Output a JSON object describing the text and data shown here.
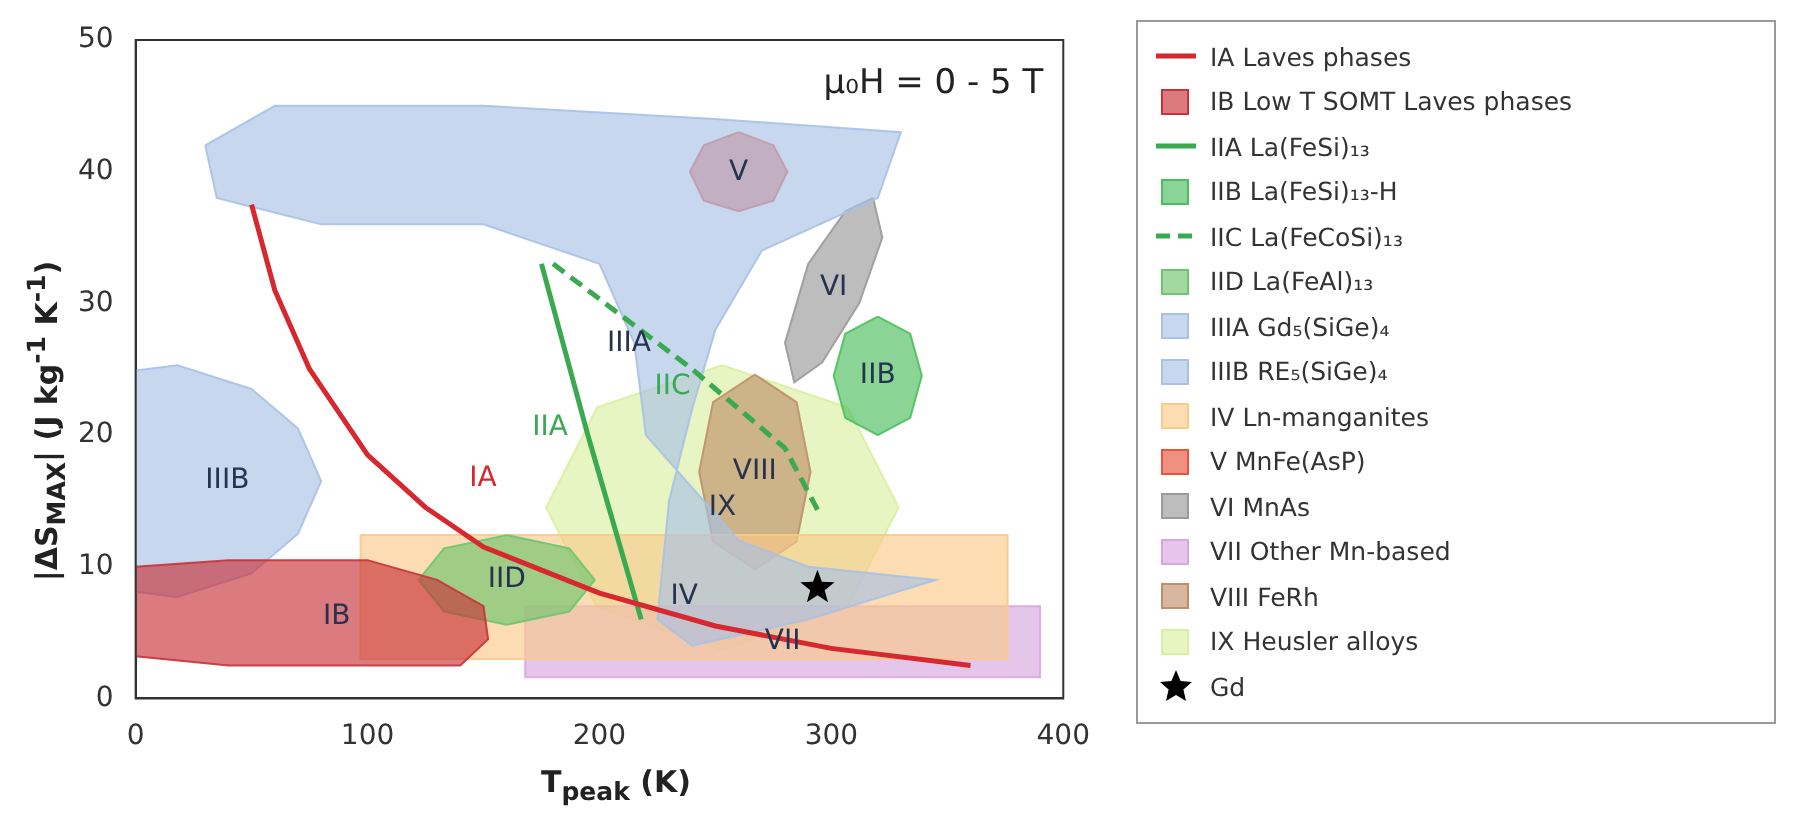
{
  "chart_data": {
    "type": "area",
    "xlabel": "T$_{peak}$ (K)",
    "ylabel": "|ΔS$_{MAX}$| (J kg$^{-1}$ K$^{-1}$)",
    "xlim": [
      0,
      400
    ],
    "xticks": [
      0,
      100,
      200,
      300,
      400
    ],
    "ylim": [
      0,
      50
    ],
    "yticks": [
      0,
      10,
      20,
      30,
      40,
      50
    ],
    "grid": false,
    "legend": "right",
    "annotations": [
      "μ₀H = 0 - 5 T",
      "IA",
      "IB",
      "IIA",
      "IIB",
      "IIC",
      "IID",
      "IIIA",
      "IIIB",
      "IV",
      "V",
      "VI",
      "VII",
      "VIII",
      "IX"
    ],
    "series": [
      {
        "name": "IA  Laves phases",
        "type": "line",
        "color": "#d7282f",
        "x": [
          50,
          60,
          75,
          100,
          125,
          150,
          200,
          250,
          300,
          360
        ],
        "values": [
          37.5,
          31,
          25,
          18.5,
          14.5,
          11.5,
          8,
          5.5,
          3.8,
          2.5
        ]
      },
      {
        "name": "IB  Low T SOMT Laves phases",
        "color": "#c8323a",
        "x": [
          0,
          40,
          100,
          130,
          150,
          152,
          140,
          115,
          40,
          0,
          0
        ],
        "values": [
          10,
          10.5,
          10.5,
          9,
          7,
          4.5,
          2.5,
          2.5,
          2.5,
          3.2,
          10
        ]
      },
      {
        "name": "IIA  La(FeSi)₁₃",
        "type": "line",
        "color": "#3aaa50",
        "x": [
          175,
          195,
          218
        ],
        "values": [
          33,
          20,
          6
        ]
      },
      {
        "name": "IIB  La(FeSi)₁₃-H",
        "color": "#4cbf5c",
        "x": [
          320,
          334,
          339,
          334,
          320,
          306,
          301,
          306,
          320
        ],
        "values": [
          29,
          27.7,
          24.5,
          21.3,
          20,
          21.3,
          24.5,
          27.7,
          29
        ]
      },
      {
        "name": "IIC  La(FeCoSi)₁₃",
        "type": "line",
        "line_style": "dashed",
        "color": "#3aaa50",
        "x": [
          180,
          240,
          280,
          295
        ],
        "values": [
          33,
          25,
          19,
          14
        ]
      },
      {
        "name": "IID  La(FeAl)₁₃",
        "color": "#6fc46f",
        "x": [
          160,
          187,
          198,
          187,
          160,
          133,
          122,
          133,
          160
        ],
        "values": [
          12.4,
          11.4,
          9,
          6.6,
          5.6,
          6.6,
          9,
          11.4,
          12.4
        ]
      },
      {
        "name": "IIIA  Gd₅(SiGe)₄",
        "color": "#a9c1e5",
        "x": [
          30,
          60,
          150,
          250,
          330,
          320,
          270,
          250,
          240,
          230,
          225,
          240,
          290,
          345,
          290,
          260,
          220,
          215,
          200,
          150,
          80,
          35,
          30
        ],
        "values": [
          42,
          45,
          45,
          44,
          43,
          38,
          34,
          28,
          22,
          15,
          6,
          4,
          6,
          9,
          10,
          12,
          20,
          27,
          33,
          36,
          36,
          38,
          42
        ]
      },
      {
        "name": "IIIB  RE₅(SiGe)₄",
        "color": "#a9c1e5",
        "x": [
          0,
          18,
          50,
          70,
          80,
          70,
          50,
          18,
          0,
          0
        ],
        "values": [
          24.9,
          25.3,
          23.5,
          20.5,
          16.5,
          12.5,
          9.5,
          7.7,
          8.1,
          24.9
        ]
      },
      {
        "name": "IV  Ln-manganites",
        "color": "#f9c98a",
        "x": [
          97,
          376,
          376,
          97,
          97
        ],
        "values": [
          12.4,
          12.4,
          3,
          3,
          12.4
        ]
      },
      {
        "name": "V  MnFe(AsP)",
        "color": "#e8553e",
        "x": [
          260,
          275,
          281,
          275,
          260,
          245,
          239,
          245,
          260
        ],
        "values": [
          43,
          42,
          40,
          37.8,
          37,
          37.8,
          40,
          42,
          43
        ]
      },
      {
        "name": "VI  MnAs",
        "color": "#9a9a9a",
        "x": [
          318,
          322,
          312,
          296,
          284,
          280,
          290,
          306,
          318
        ],
        "values": [
          38,
          35,
          30,
          25.5,
          24,
          27,
          33,
          37,
          38
        ]
      },
      {
        "name": "VII  Other Mn-based",
        "color": "#d8a6e0",
        "x": [
          168,
          390,
          390,
          168,
          168
        ],
        "values": [
          7,
          7,
          1.6,
          1.6,
          7
        ]
      },
      {
        "name": "VIII  FeRh",
        "color": "#c08f6a",
        "x": [
          267,
          285,
          291,
          285,
          267,
          249,
          243,
          249,
          267
        ],
        "values": [
          24.6,
          22.5,
          17.2,
          11.9,
          9.8,
          11.9,
          17.2,
          22.5,
          24.6
        ]
      },
      {
        "name": "IX  Heusler alloys",
        "color": "#d9f0a0",
        "x": [
          253,
          307,
          329,
          307,
          253,
          199,
          177,
          199,
          253
        ],
        "values": [
          25.3,
          22.1,
          14.5,
          6.9,
          3.7,
          6.9,
          14.5,
          22.1,
          25.3
        ]
      },
      {
        "name": "Gd",
        "type": "scatter",
        "marker": "star",
        "color": "#000000",
        "x": [
          294
        ],
        "values": [
          8.4
        ]
      }
    ]
  }
}
